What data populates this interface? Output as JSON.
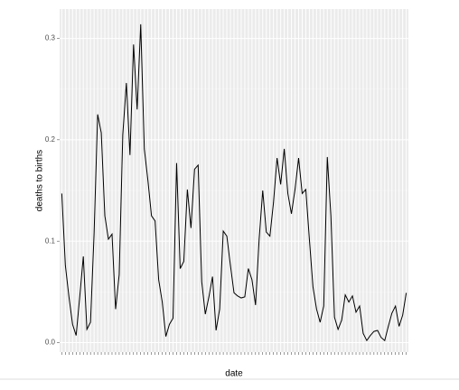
{
  "chart_data": {
    "type": "line",
    "y_label": "deaths to births",
    "x_label": "date",
    "categories": [
      null,
      null,
      null,
      null,
      null,
      null,
      null,
      null,
      null,
      null,
      null,
      null,
      null,
      null,
      null,
      null,
      null,
      null,
      null,
      null,
      null,
      null,
      null,
      null,
      null,
      null,
      null,
      null,
      null,
      null,
      null,
      null,
      null,
      null,
      null,
      null,
      null,
      null,
      null,
      null,
      null,
      null,
      null,
      null,
      null,
      null,
      null,
      null,
      null,
      null,
      null,
      null,
      null,
      null,
      null,
      null,
      null,
      null,
      null,
      null,
      null,
      null,
      null,
      null,
      null,
      null,
      null,
      null,
      null,
      null,
      null,
      null,
      null,
      null,
      null,
      null,
      null,
      null,
      null,
      null,
      null,
      null,
      null,
      null,
      null,
      null,
      null,
      null,
      null,
      null,
      null,
      null,
      null,
      null,
      null,
      null,
      null
    ],
    "values": [
      0.147,
      0.076,
      0.045,
      0.018,
      0.007,
      0.045,
      0.085,
      0.013,
      0.02,
      0.107,
      0.225,
      0.207,
      0.125,
      0.102,
      0.107,
      0.033,
      0.067,
      0.205,
      0.256,
      0.185,
      0.294,
      0.23,
      0.314,
      0.191,
      0.16,
      0.125,
      0.12,
      0.062,
      0.04,
      0.006,
      0.018,
      0.024,
      0.177,
      0.073,
      0.08,
      0.151,
      0.113,
      0.171,
      0.175,
      0.06,
      0.028,
      0.045,
      0.065,
      0.012,
      0.033,
      0.11,
      0.105,
      0.076,
      0.049,
      0.046,
      0.044,
      0.045,
      0.073,
      0.062,
      0.037,
      0.102,
      0.15,
      0.109,
      0.105,
      0.138,
      0.182,
      0.156,
      0.191,
      0.147,
      0.127,
      0.151,
      0.182,
      0.147,
      0.151,
      0.102,
      0.055,
      0.033,
      0.02,
      0.036,
      0.183,
      0.125,
      0.025,
      0.013,
      0.022,
      0.047,
      0.04,
      0.046,
      0.03,
      0.036,
      0.009,
      0.002,
      0.007,
      0.011,
      0.012,
      0.005,
      0.002,
      0.016,
      0.029,
      0.036,
      0.016,
      0.027,
      0.049
    ],
    "color": "#000000",
    "ylim": [
      -0.0094,
      0.329
    ],
    "yticks": [
      {
        "value": 0,
        "label": "0.0"
      },
      0.1,
      0.2,
      0.3
    ],
    "grid": true
  }
}
